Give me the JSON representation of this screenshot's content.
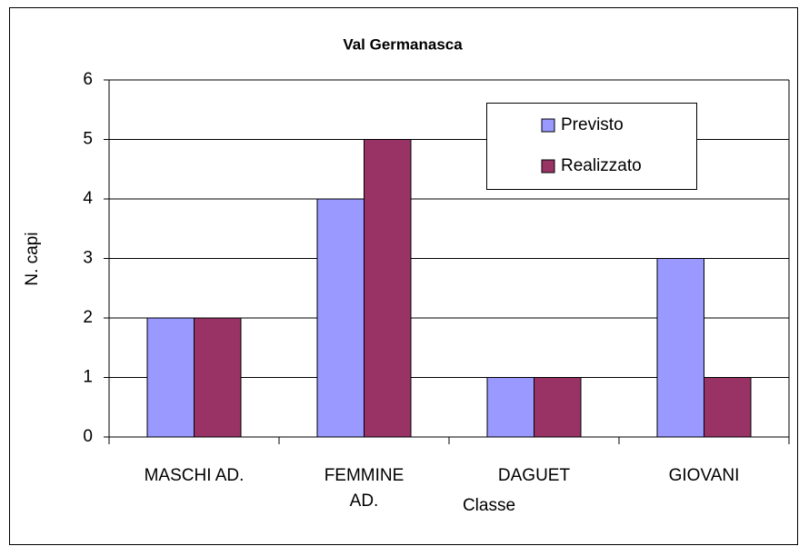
{
  "chart_data": {
    "type": "bar",
    "title": "Val Germanasca",
    "x_label": "Classe",
    "y_label": "N. capi",
    "categories": [
      "MASCHI AD.",
      "FEMMINE AD.",
      "DAGUET",
      "GIOVANI"
    ],
    "series": [
      {
        "name": "Previsto",
        "color": "#9999ff",
        "values": [
          2,
          4,
          1,
          3
        ]
      },
      {
        "name": "Realizzato",
        "color": "#993366",
        "values": [
          2,
          5,
          1,
          1
        ]
      }
    ],
    "ylim": [
      0,
      6
    ],
    "yticks": [
      0,
      1,
      2,
      3,
      4,
      5,
      6
    ],
    "grid": true,
    "legend": "upper right"
  }
}
